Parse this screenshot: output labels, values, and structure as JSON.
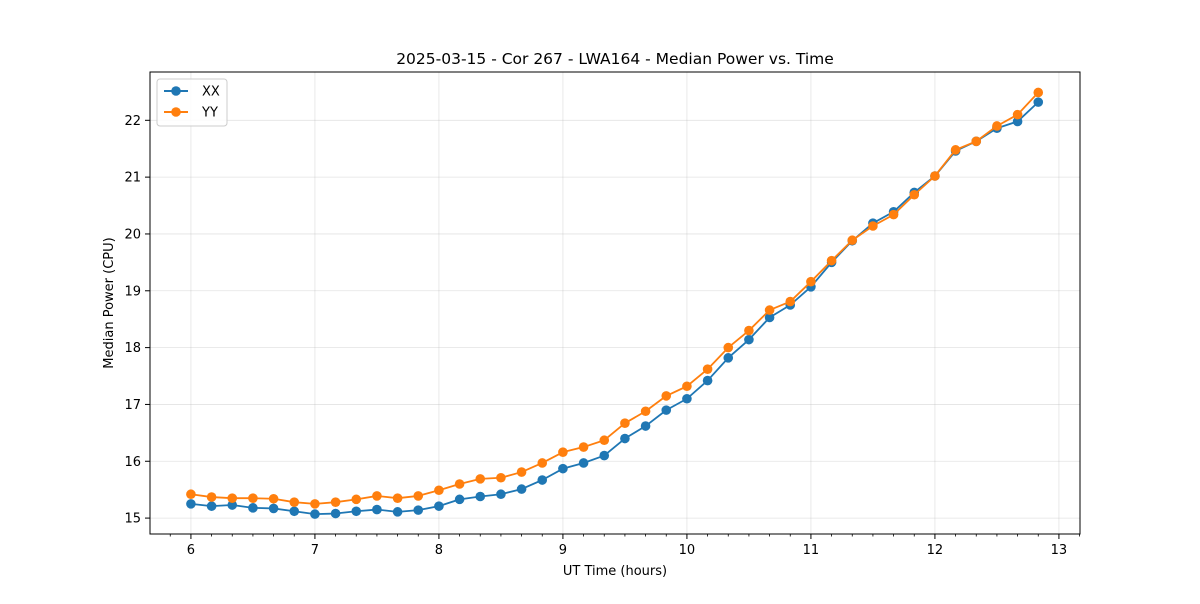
{
  "chart_data": {
    "type": "line",
    "title": "2025-03-15 - Cor 267 - LWA164 - Median Power vs. Time",
    "xlabel": "UT Time (hours)",
    "ylabel": "Median Power (CPU)",
    "xlim": [
      5.67,
      13.17
    ],
    "ylim": [
      14.72,
      22.85
    ],
    "x_ticks": [
      6,
      7,
      8,
      9,
      10,
      11,
      12,
      13
    ],
    "y_ticks": [
      15,
      16,
      17,
      18,
      19,
      20,
      21,
      22
    ],
    "grid": true,
    "legend_position": "upper-left",
    "x": [
      6.0,
      6.1667,
      6.3333,
      6.5,
      6.6667,
      6.8333,
      7.0,
      7.1667,
      7.3333,
      7.5,
      7.6667,
      7.8333,
      8.0,
      8.1667,
      8.3333,
      8.5,
      8.6667,
      8.8333,
      9.0,
      9.1667,
      9.3333,
      9.5,
      9.6667,
      9.8333,
      10.0,
      10.1667,
      10.3333,
      10.5,
      10.6667,
      10.8333,
      11.0,
      11.1667,
      11.3333,
      11.5,
      11.6667,
      11.8333,
      12.0,
      12.1667,
      12.3333,
      12.5,
      12.6667,
      12.8333
    ],
    "series": [
      {
        "name": "XX",
        "color": "#1f77b4",
        "values": [
          15.25,
          15.21,
          15.23,
          15.18,
          15.17,
          15.12,
          15.07,
          15.08,
          15.12,
          15.15,
          15.11,
          15.14,
          15.21,
          15.33,
          15.38,
          15.42,
          15.51,
          15.67,
          15.87,
          15.97,
          16.1,
          16.4,
          16.62,
          16.9,
          17.1,
          17.42,
          17.82,
          18.14,
          18.53,
          18.75,
          19.07,
          19.5,
          19.88,
          20.19,
          20.39,
          20.73,
          21.02,
          21.46,
          21.63,
          21.86,
          21.98,
          22.32
        ]
      },
      {
        "name": "YY",
        "color": "#ff7f0e",
        "values": [
          15.42,
          15.37,
          15.35,
          15.35,
          15.34,
          15.28,
          15.25,
          15.28,
          15.33,
          15.39,
          15.35,
          15.39,
          15.49,
          15.6,
          15.69,
          15.71,
          15.81,
          15.97,
          16.16,
          16.25,
          16.37,
          16.67,
          16.88,
          17.15,
          17.32,
          17.62,
          18.0,
          18.3,
          18.66,
          18.81,
          19.16,
          19.53,
          19.89,
          20.14,
          20.34,
          20.69,
          21.02,
          21.48,
          21.63,
          21.9,
          22.1,
          22.49
        ]
      }
    ]
  }
}
